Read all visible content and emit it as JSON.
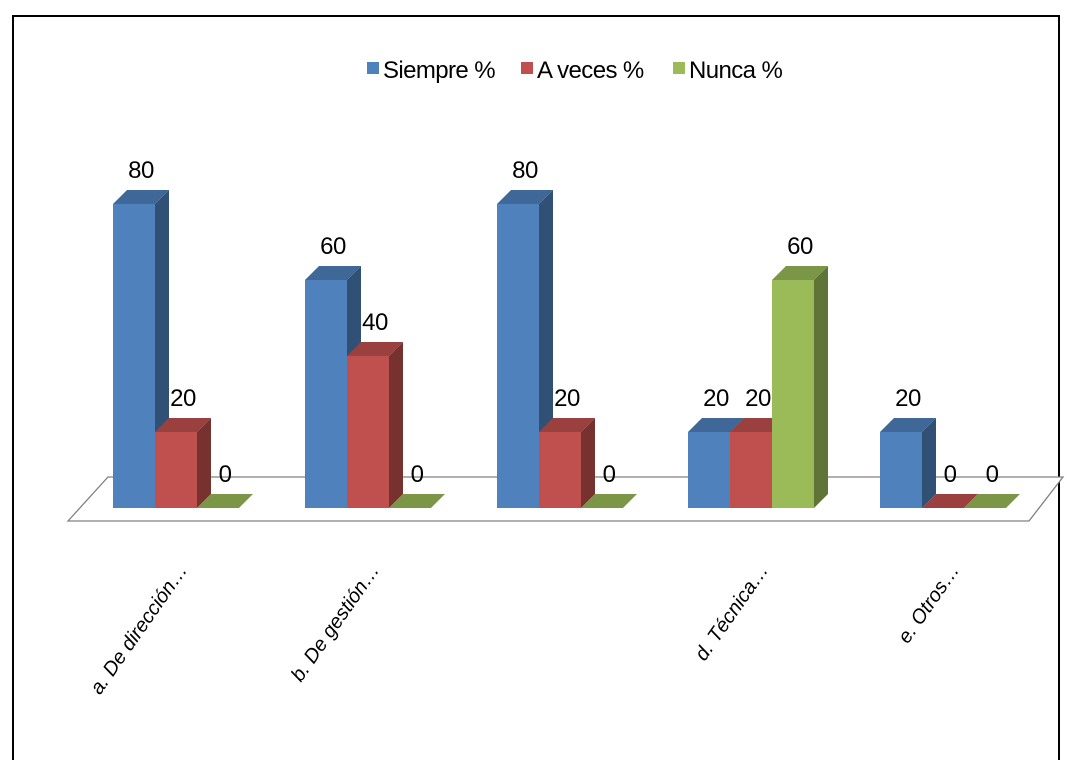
{
  "chart_data": {
    "type": "bar",
    "categories": [
      "a.   De dirección…",
      "b.   De gestión…",
      "",
      "d.   Técnica…",
      "e.   Otros…"
    ],
    "series": [
      {
        "name": "Siempre %",
        "values": [
          80,
          60,
          80,
          20,
          20
        ],
        "color": "#4F81BD"
      },
      {
        "name": "A veces %",
        "values": [
          20,
          40,
          20,
          20,
          0
        ],
        "color": "#C0504D"
      },
      {
        "name": "Nunca %",
        "values": [
          0,
          0,
          0,
          60,
          0
        ],
        "color": "#9BBB59"
      }
    ],
    "data_labels": true,
    "legend_position": "top",
    "three_d": true,
    "grid": false,
    "ylim": [
      0,
      80
    ]
  }
}
